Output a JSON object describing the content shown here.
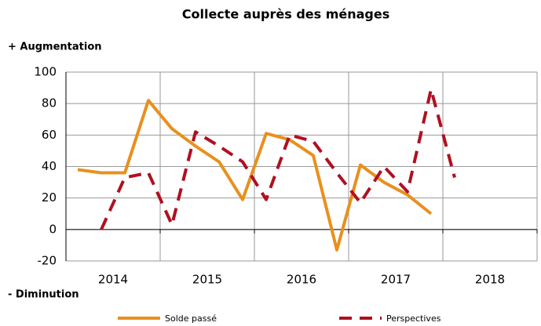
{
  "chart_data": {
    "type": "line",
    "title": "Collecte auprès des ménages",
    "annotations": [
      "+ Augmentation",
      "- Diminution"
    ],
    "categories": [
      null,
      "2014",
      null,
      null,
      null,
      "2015",
      null,
      null,
      null,
      "2016",
      null,
      null,
      null,
      "2017",
      null,
      null,
      null,
      "2018",
      null,
      null
    ],
    "series": [
      {
        "name": "Solde passé",
        "color": "#e8901e",
        "dash": false,
        "values": [
          38,
          36,
          36,
          82,
          64,
          53,
          43,
          19,
          61,
          57,
          47,
          -13,
          41,
          30,
          22,
          10,
          null,
          null,
          null,
          null
        ]
      },
      {
        "name": "Perspectives",
        "color": "#b01020",
        "dash": true,
        "values": [
          null,
          0,
          33,
          36,
          3,
          62,
          53,
          43,
          19,
          60,
          56,
          36,
          17,
          40,
          24,
          89,
          33,
          null,
          null,
          null
        ]
      }
    ],
    "ylim": [
      -20,
      100
    ],
    "yticks": [
      -20,
      0,
      20,
      40,
      60,
      80,
      100
    ],
    "grid": true
  }
}
